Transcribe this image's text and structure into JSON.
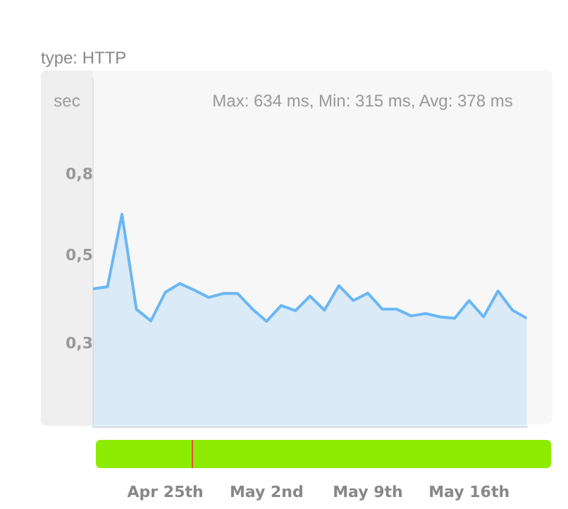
{
  "chart_data": {
    "type": "area",
    "subtitle": "type: HTTP",
    "ylabel": "sec",
    "annotations": [
      "Max: 634 ms, Min: 315 ms, Avg: 378 ms"
    ],
    "x": [
      "--04-20",
      "--04-21",
      "--04-22",
      "--04-23",
      "--04-24",
      "--04-25",
      "--04-26",
      "--04-27",
      "--04-28",
      "--04-29",
      "--04-30",
      "--05-01",
      "--05-02",
      "--05-03",
      "--05-04",
      "--05-05",
      "--05-06",
      "--05-07",
      "--05-08",
      "--05-09",
      "--05-10",
      "--05-11",
      "--05-12",
      "--05-13",
      "--05-14",
      "--05-15",
      "--05-16",
      "--05-17",
      "--05-18",
      "--05-19",
      "--05-20"
    ],
    "series": [
      {
        "color": "#6ab7f5",
        "values": [
          0.413,
          0.418,
          0.637,
          0.367,
          0.343,
          0.405,
          0.426,
          0.41,
          0.393,
          0.402,
          0.402,
          0.368,
          0.342,
          0.375,
          0.364,
          0.396,
          0.365,
          0.421,
          0.386,
          0.403,
          0.367,
          0.367,
          0.353,
          0.358,
          0.351,
          0.348,
          0.386,
          0.351,
          0.408,
          0.365,
          0.348
        ]
      }
    ],
    "log": "y",
    "ylim": [
      0.185,
      1.39
    ],
    "yticks": [
      {
        "value": 0.3,
        "label": "0,3"
      },
      {
        "value": 0.5,
        "label": "0,5"
      },
      {
        "value": 0.8,
        "label": "0,8"
      }
    ],
    "xlim": [
      "--04-20",
      "--05-20"
    ],
    "xticks": [
      {
        "value": "--04-25",
        "label": "Apr 25th"
      },
      {
        "value": "--05-02",
        "label": "May 2nd"
      },
      {
        "value": "--05-09",
        "label": "May 9th"
      },
      {
        "value": "--05-16",
        "label": "May 16th"
      }
    ],
    "grid": false,
    "legend": false,
    "marker": "none",
    "line_style": "solid"
  }
}
